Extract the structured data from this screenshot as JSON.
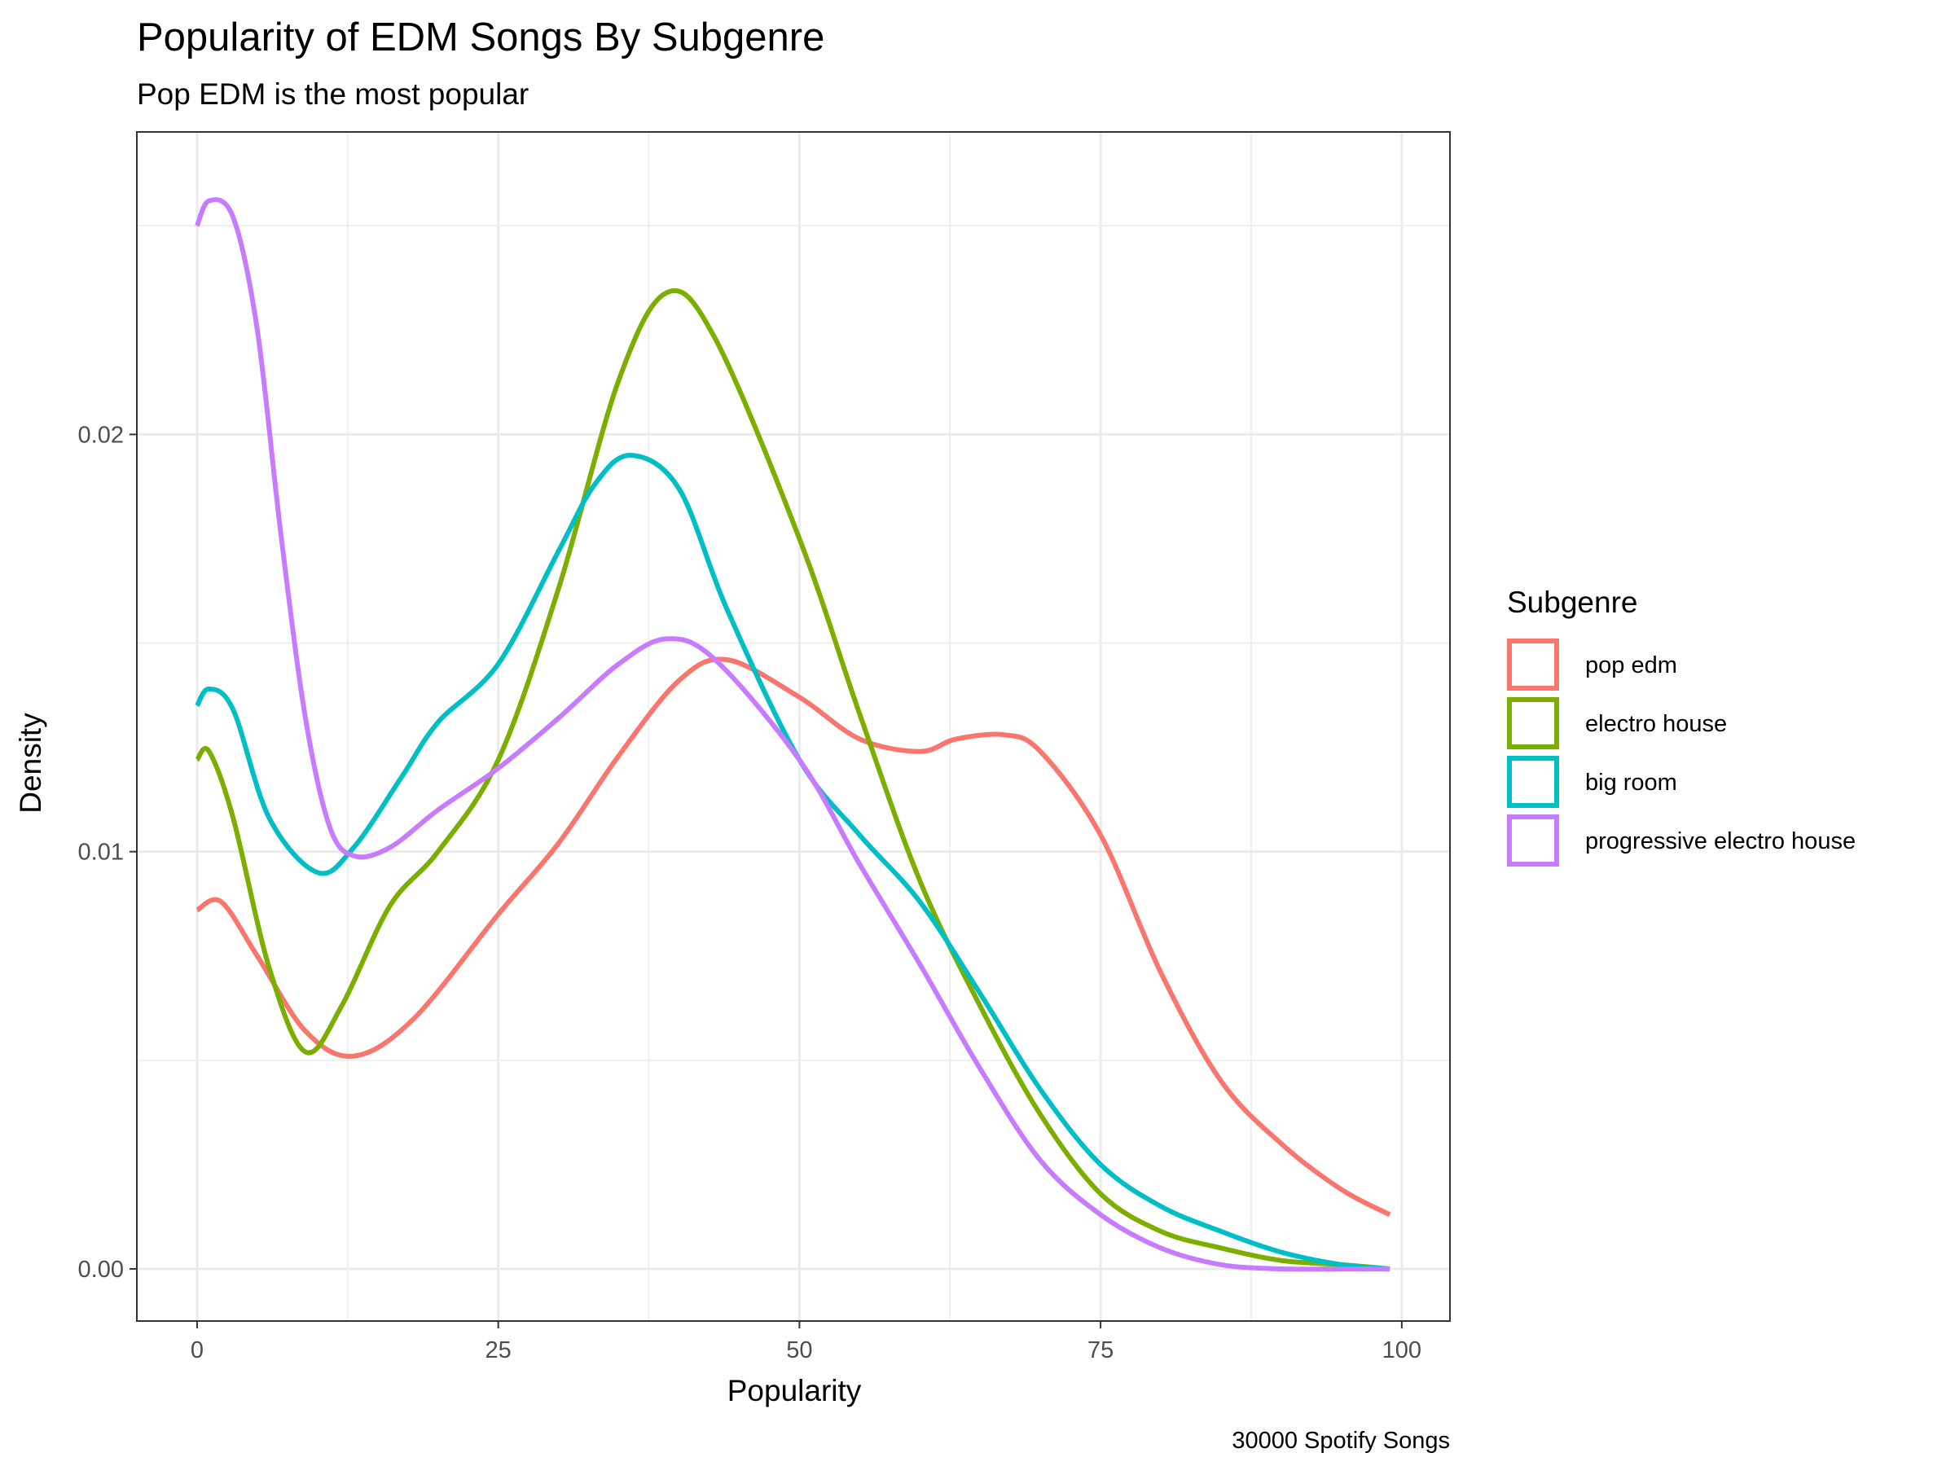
{
  "chart_data": {
    "type": "line",
    "title": "Popularity of EDM Songs By Subgenre",
    "subtitle": "Pop EDM is the most popular",
    "xlabel": "Popularity",
    "ylabel": "Density",
    "caption": "30000 Spotify Songs",
    "xlim": [
      -5,
      104
    ],
    "ylim": [
      -0.00125,
      0.02725
    ],
    "x_ticks": [
      0,
      25,
      50,
      75,
      100
    ],
    "x_tick_labels": [
      "0",
      "25",
      "50",
      "75",
      "100"
    ],
    "y_ticks": [
      0.0,
      0.01,
      0.02
    ],
    "y_tick_labels": [
      "0.00",
      "0.01",
      "0.02"
    ],
    "grid": true,
    "legend": {
      "title": "Subgenre",
      "position": "right"
    },
    "series": [
      {
        "name": "pop edm",
        "color": "#F8766D",
        "x": [
          0,
          2,
          5,
          9,
          13,
          18,
          25,
          30,
          35,
          40,
          44,
          50,
          55,
          60,
          63,
          67,
          70,
          75,
          80,
          85,
          90,
          95,
          99
        ],
        "y": [
          0.0086,
          0.0088,
          0.0075,
          0.0057,
          0.0051,
          0.006,
          0.0085,
          0.0102,
          0.0123,
          0.0141,
          0.0146,
          0.0137,
          0.0127,
          0.0124,
          0.0127,
          0.0128,
          0.0124,
          0.0104,
          0.0071,
          0.0045,
          0.003,
          0.0019,
          0.0013
        ]
      },
      {
        "name": "electro house",
        "color": "#7CAE00",
        "x": [
          0,
          1,
          3,
          6,
          9,
          12,
          16,
          20,
          25,
          30,
          35,
          39,
          43,
          50,
          55,
          60,
          65,
          70,
          75,
          80,
          85,
          90,
          95,
          99
        ],
        "y": [
          0.0122,
          0.0124,
          0.0108,
          0.0072,
          0.0052,
          0.0063,
          0.0087,
          0.01,
          0.0122,
          0.0163,
          0.0213,
          0.0234,
          0.0223,
          0.0175,
          0.0133,
          0.0093,
          0.0063,
          0.0037,
          0.0018,
          0.0009,
          0.0005,
          0.0002,
          0.0001,
          0.0
        ]
      },
      {
        "name": "big room",
        "color": "#00BFC4",
        "x": [
          0,
          1,
          3,
          6,
          10,
          13,
          17,
          20,
          25,
          30,
          33,
          36,
          40,
          44,
          50,
          55,
          60,
          65,
          70,
          75,
          80,
          85,
          90,
          95,
          99
        ],
        "y": [
          0.0135,
          0.0139,
          0.0134,
          0.0108,
          0.0095,
          0.0101,
          0.0118,
          0.0131,
          0.0145,
          0.0172,
          0.0188,
          0.0195,
          0.0187,
          0.0158,
          0.0122,
          0.0104,
          0.0088,
          0.0066,
          0.0043,
          0.0025,
          0.0015,
          0.0009,
          0.0004,
          0.0001,
          0.0
        ]
      },
      {
        "name": "progressive electro house",
        "color": "#C77CFF",
        "x": [
          0,
          1,
          3,
          5,
          7,
          9,
          11,
          13,
          16,
          20,
          25,
          30,
          35,
          39,
          43,
          50,
          55,
          60,
          65,
          70,
          75,
          80,
          85,
          90,
          95,
          99
        ],
        "y": [
          0.025,
          0.0256,
          0.0252,
          0.0225,
          0.0175,
          0.0132,
          0.0106,
          0.0099,
          0.0101,
          0.011,
          0.012,
          0.0132,
          0.0145,
          0.0151,
          0.0146,
          0.0122,
          0.0097,
          0.0073,
          0.0048,
          0.0026,
          0.0013,
          0.0005,
          0.0001,
          0.0,
          0.0,
          0.0
        ]
      }
    ]
  }
}
